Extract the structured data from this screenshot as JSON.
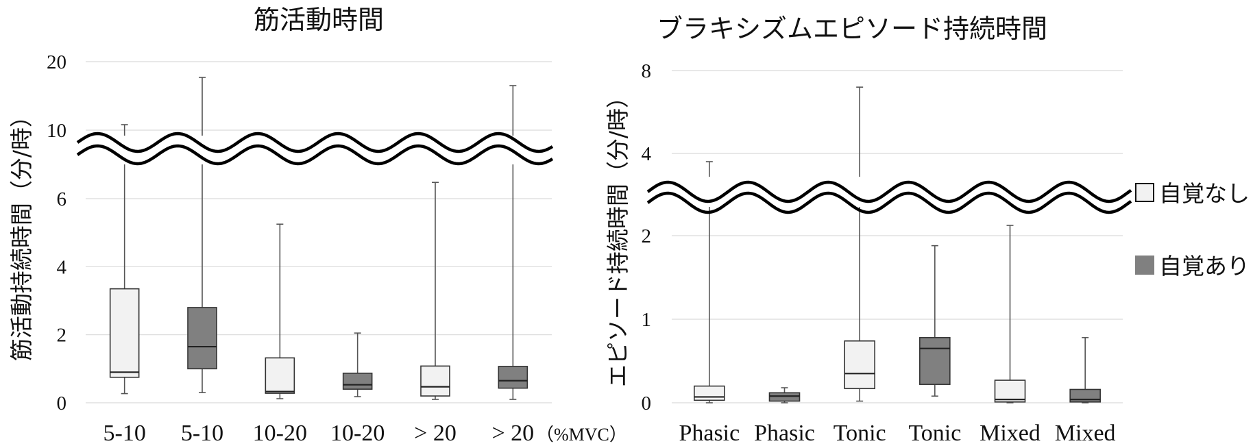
{
  "chart_data": [
    {
      "type": "box",
      "title": "筋活動時間",
      "ylabel": "筋活動持続時間（分/時）",
      "x_unit": "（%MVC）",
      "y_ticks": [
        "0",
        "2",
        "4",
        "6",
        "10",
        "20"
      ],
      "axis_break": true,
      "categories": [
        "5-10",
        "5-10",
        "10-20",
        "10-20",
        "> 20",
        "> 20"
      ],
      "boxes": [
        {
          "category": "5-10",
          "group": "自覚なし",
          "min": 0.27,
          "q1": 0.75,
          "median": 0.9,
          "q3": 3.35,
          "max": 10.8
        },
        {
          "category": "5-10",
          "group": "自覚あり",
          "min": 0.3,
          "q1": 1.0,
          "median": 1.65,
          "q3": 2.8,
          "max": 17.7
        },
        {
          "category": "10-20",
          "group": "自覚なし",
          "min": 0.12,
          "q1": 0.28,
          "median": 0.33,
          "q3": 1.32,
          "max": 5.25
        },
        {
          "category": "10-20",
          "group": "自覚あり",
          "min": 0.18,
          "q1": 0.4,
          "median": 0.53,
          "q3": 0.87,
          "max": 2.05
        },
        {
          "category": "> 20",
          "group": "自覚なし",
          "min": 0.1,
          "q1": 0.2,
          "median": 0.47,
          "q3": 1.08,
          "max": 6.95
        },
        {
          "category": "> 20",
          "group": "自覚あり",
          "min": 0.1,
          "q1": 0.43,
          "median": 0.65,
          "q3": 1.07,
          "max": 16.5
        }
      ]
    },
    {
      "type": "box",
      "title": "ブラキシズムエピソード持続時間",
      "ylabel": "エピソード持続時間（分/時）",
      "y_ticks": [
        "0",
        "1",
        "2",
        "4",
        "8"
      ],
      "axis_break": true,
      "categories": [
        "Phasic",
        "Phasic",
        "Tonic",
        "Tonic",
        "Mixed",
        "Mixed"
      ],
      "boxes": [
        {
          "category": "Phasic",
          "group": "自覚なし",
          "min": 0.0,
          "q1": 0.03,
          "median": 0.07,
          "q3": 0.2,
          "max": 3.8
        },
        {
          "category": "Phasic",
          "group": "自覚あり",
          "min": 0.0,
          "q1": 0.02,
          "median": 0.08,
          "q3": 0.12,
          "max": 0.18
        },
        {
          "category": "Tonic",
          "group": "自覚なし",
          "min": 0.02,
          "q1": 0.17,
          "median": 0.35,
          "q3": 0.74,
          "max": 7.2
        },
        {
          "category": "Tonic",
          "group": "自覚あり",
          "min": 0.08,
          "q1": 0.22,
          "median": 0.65,
          "q3": 0.78,
          "max": 1.88
        },
        {
          "category": "Mixed",
          "group": "自覚なし",
          "min": 0.0,
          "q1": 0.01,
          "median": 0.04,
          "q3": 0.27,
          "max": 2.25
        },
        {
          "category": "Mixed",
          "group": "自覚あり",
          "min": 0.0,
          "q1": 0.01,
          "median": 0.04,
          "q3": 0.16,
          "max": 0.78
        }
      ]
    }
  ],
  "legend": {
    "position": "right",
    "items": [
      {
        "label": "自覚なし",
        "color": "#f2f2f2"
      },
      {
        "label": "自覚あり",
        "color": "#808080"
      }
    ]
  }
}
